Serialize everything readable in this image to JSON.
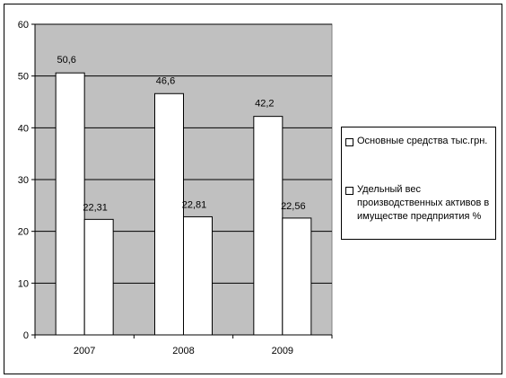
{
  "chart_data": {
    "type": "bar",
    "categories": [
      "2007",
      "2008",
      "2009"
    ],
    "series": [
      {
        "name": "Основные средства тыс.грн.",
        "values": [
          50.6,
          46.6,
          42.2
        ],
        "labels": [
          "50,6",
          "46,6",
          "42,2"
        ],
        "color": "#ffffff"
      },
      {
        "name": "Удельный вес производственных активов в имуществе предприятия %",
        "values": [
          22.31,
          22.81,
          22.56
        ],
        "labels": [
          "22,31",
          "22,81",
          "22,56"
        ],
        "color": "#ffffff"
      }
    ],
    "title": "",
    "xlabel": "",
    "ylabel": "",
    "ylim": [
      0,
      60
    ],
    "yticks": [
      0,
      10,
      20,
      30,
      40,
      50,
      60
    ],
    "grid": true,
    "plot_background": "#c0c0c0",
    "legend_position": "right"
  },
  "legend": {
    "item1": "Основные средства тыс.грн.",
    "item2": "Удельный вес производственных активов в имуществе предприятия %"
  }
}
